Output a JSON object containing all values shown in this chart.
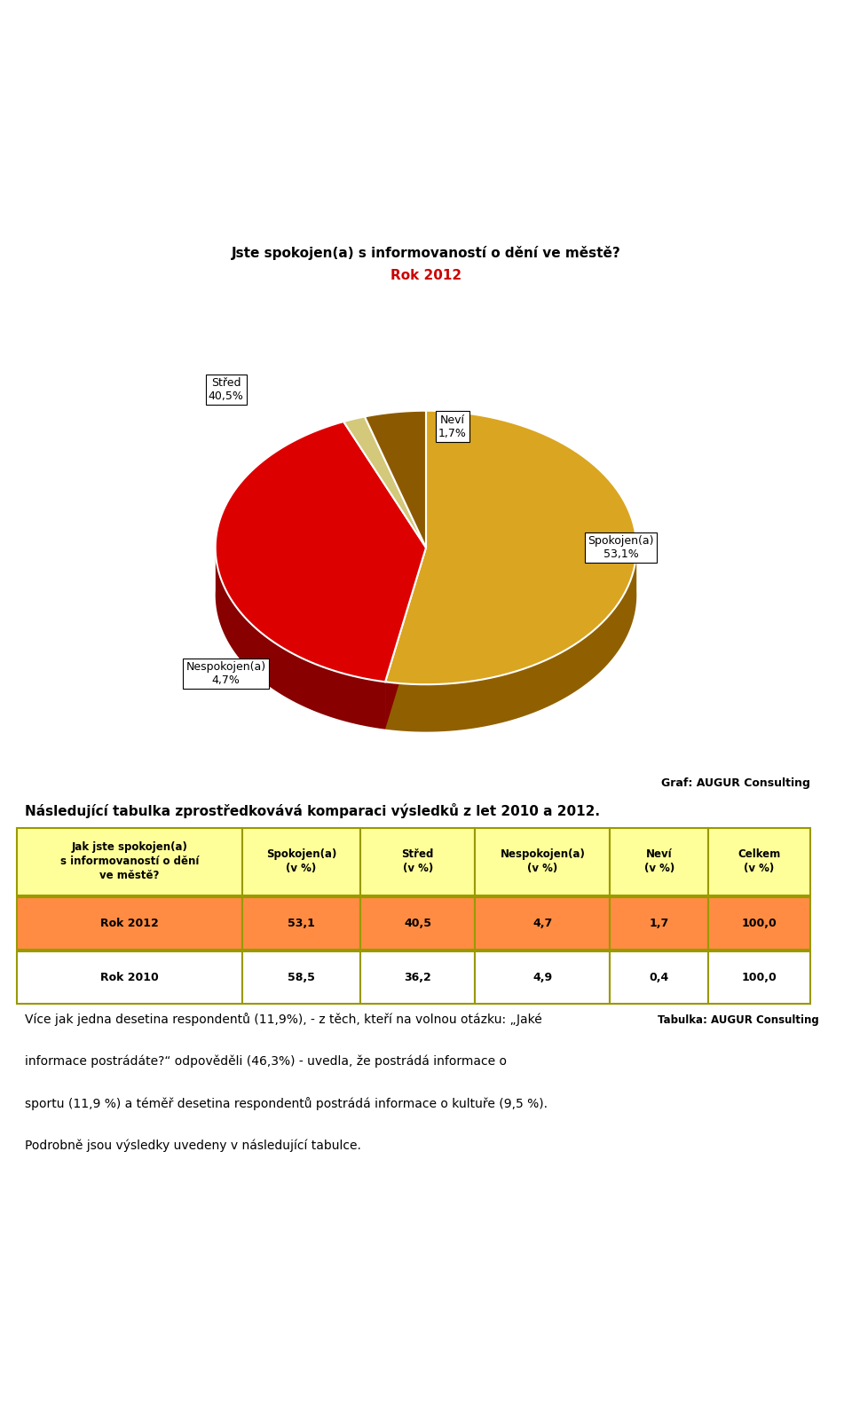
{
  "title_main": "Jste spokojen(a) s informovaností o dění ve městě?",
  "title_sub": "Rok 2012",
  "pie_labels": [
    "Střed",
    "Neví",
    "Spokojen(a)",
    "Nespokojen(a)"
  ],
  "pie_values": [
    40.5,
    1.7,
    53.1,
    4.7
  ],
  "pie_colors_top": [
    "#DD0000",
    "#D4C87A",
    "#DAA520",
    "#8B5A00"
  ],
  "pie_colors_side": [
    "#880000",
    "#A09040",
    "#906000",
    "#4A2800"
  ],
  "graf_label": "Graf: AUGUR Consulting",
  "table_title": "Následující tabulka zprostředkovává komparaci výsledků z let 2010 a 2012.",
  "table_header": [
    "Jak jste spokojen(a)\ns informovaností o dění\nve městě?",
    "Spokojen(a)\n(v %)",
    "Střed\n(v %)",
    "Nespokojen(a)\n(v %)",
    "Neví\n(v %)",
    "Celkem\n(v %)"
  ],
  "table_row1": [
    "Rok 2012",
    "53,1",
    "40,5",
    "4,7",
    "1,7",
    "100,0"
  ],
  "table_row2": [
    "Rok 2010",
    "58,5",
    "36,2",
    "4,9",
    "0,4",
    "100,0"
  ],
  "table_label": "Tabulka: AUGUR Consulting",
  "para_line1": "Více jak jedna desetina respondentů (11,9%), - z těch, kteří na volnou otázku: „Jaké",
  "para_line2": "informace postrádáte?“ odpověděli (46,3%) - uvedla, že postrádá informace o",
  "para_line3": "sportu (11,9 %) a téměř desetina respondentů postrádá informace o kultuře (9,5 %).",
  "para_line4": "Podrobně jsou výsledky uvedeny v následující tabulce.",
  "header_bg": "#FFFF99",
  "row1_bg": "#FF8C42",
  "row2_bg": "#FFFFFF",
  "border_color": "#999900",
  "background_color": "#FFFFFF"
}
